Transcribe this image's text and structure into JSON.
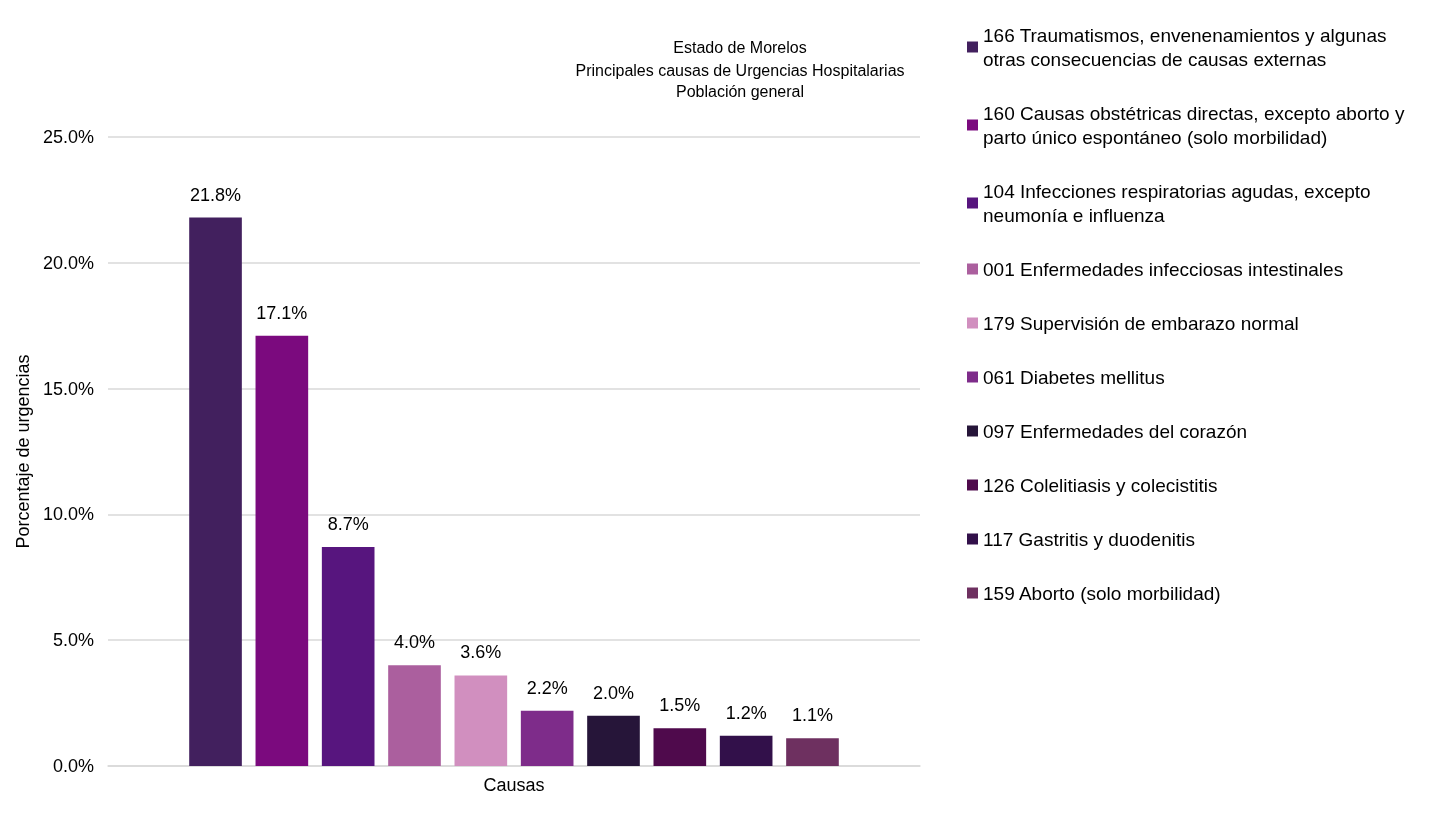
{
  "chart_data": {
    "type": "bar",
    "title": "Estado de Morelos",
    "subtitle": "Principales causas de Urgencias Hospitalarias\nPoblación general",
    "xlabel": null,
    "ylabel": "Porcentaje de urgencias",
    "categories": [
      "Causas"
    ],
    "series": [
      {
        "name": "166 Traumatismos, envenenamientos y algunas otras consecuencias de causas externas",
        "color": "#42205e",
        "values": [
          21.8
        ],
        "value_labels": [
          "21.8%"
        ]
      },
      {
        "name": "160 Causas obstétricas directas, excepto aborto y parto único espontáneo (solo morbilidad)",
        "color": "#7b0a7e",
        "values": [
          17.1
        ],
        "value_labels": [
          "17.1%"
        ]
      },
      {
        "name": "104 Infecciones respiratorias agudas, excepto neumonía e influenza",
        "color": "#57157e",
        "values": [
          8.7
        ],
        "value_labels": [
          "8.7%"
        ]
      },
      {
        "name": "001 Enfermedades infecciosas intestinales",
        "color": "#ab5f9e",
        "values": [
          4.0
        ],
        "value_labels": [
          "4.0%"
        ]
      },
      {
        "name": "179 Supervisión de embarazo normal",
        "color": "#d18fbf",
        "values": [
          3.6
        ],
        "value_labels": [
          "3.6%"
        ]
      },
      {
        "name": "061 Diabetes mellitus",
        "color": "#7e2c8a",
        "values": [
          2.2
        ],
        "value_labels": [
          "2.2%"
        ]
      },
      {
        "name": "097 Enfermedades del corazón",
        "color": "#261539",
        "values": [
          2.0
        ],
        "value_labels": [
          "2.0%"
        ]
      },
      {
        "name": "126 Colelitiasis y colecistitis",
        "color": "#4f0a4c",
        "values": [
          1.5
        ],
        "value_labels": [
          "1.5%"
        ]
      },
      {
        "name": "117 Gastritis y duodenitis",
        "color": "#32104a",
        "values": [
          1.2
        ],
        "value_labels": [
          "1.2%"
        ]
      },
      {
        "name": "159 Aborto (solo morbilidad)",
        "color": "#6e3060",
        "values": [
          1.1
        ],
        "value_labels": [
          "1.1%"
        ]
      }
    ],
    "ylim": [
      0,
      25
    ],
    "yticks": [
      {
        "value": 0,
        "label": "0.0%"
      },
      {
        "value": 5,
        "label": "5.0%"
      },
      {
        "value": 10,
        "label": "10.0%"
      },
      {
        "value": 15,
        "label": "15.0%"
      },
      {
        "value": 20,
        "label": "20.0%"
      },
      {
        "value": 25,
        "label": "25.0%"
      }
    ],
    "grid": "y",
    "legend": "right"
  }
}
